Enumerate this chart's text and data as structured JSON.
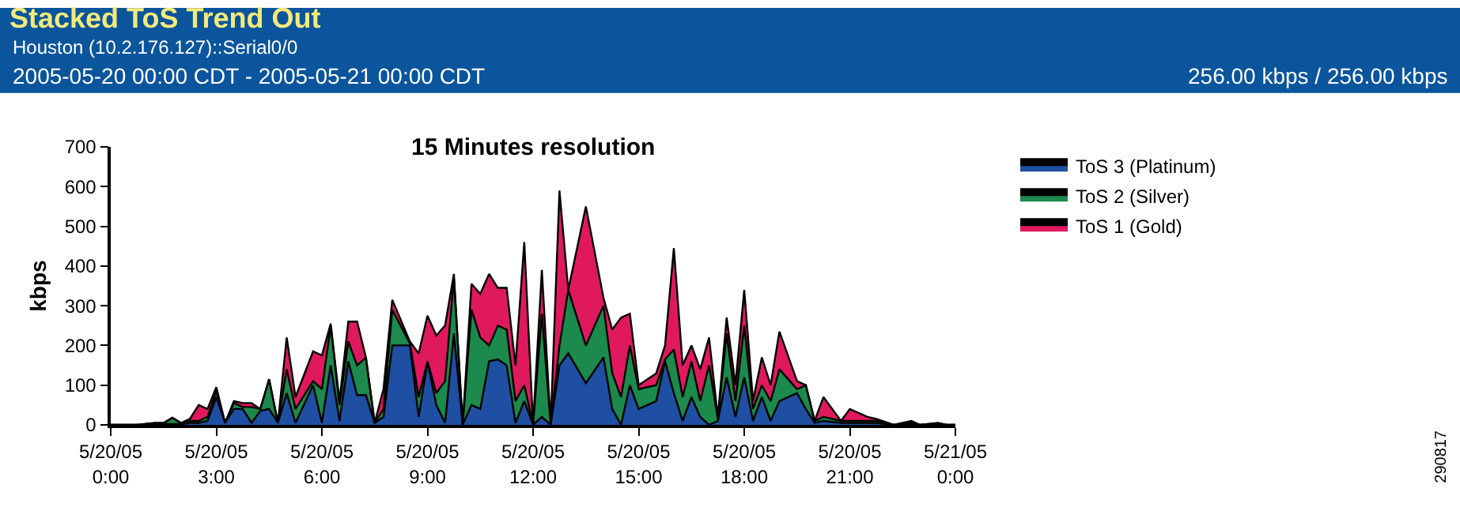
{
  "chart_data": {
    "type": "area",
    "stacked": true,
    "title": "Stacked ToS Trend Out",
    "subtitle": "Houston (10.2.176.127)::Serial0/0",
    "ylabel": "kbps",
    "annotations": [
      "2005-05-20 00:00 CDT - 2005-05-21 00:00 CDT",
      "256.00 kbps / 256.00 kbps",
      "15 Minutes resolution",
      "290817"
    ],
    "x": [
      "2005-05-20T00:00",
      "2005-05-20T00:45",
      "2005-05-20T01:15",
      "2005-05-20T01:30",
      "2005-05-20T01:45",
      "2005-05-20T02:00",
      "2005-05-20T02:15",
      "2005-05-20T02:30",
      "2005-05-20T02:45",
      "2005-05-20T03:00",
      "2005-05-20T03:15",
      "2005-05-20T03:30",
      "2005-05-20T03:45",
      "2005-05-20T04:00",
      "2005-05-20T04:15",
      "2005-05-20T04:30",
      "2005-05-20T04:45",
      "2005-05-20T05:00",
      "2005-05-20T05:15",
      "2005-05-20T05:45",
      "2005-05-20T06:00",
      "2005-05-20T06:15",
      "2005-05-20T06:30",
      "2005-05-20T06:45",
      "2005-05-20T07:00",
      "2005-05-20T07:15",
      "2005-05-20T07:30",
      "2005-05-20T07:45",
      "2005-05-20T08:00",
      "2005-05-20T08:30",
      "2005-05-20T08:45",
      "2005-05-20T09:00",
      "2005-05-20T09:15",
      "2005-05-20T09:30",
      "2005-05-20T09:45",
      "2005-05-20T10:00",
      "2005-05-20T10:15",
      "2005-05-20T10:30",
      "2005-05-20T10:45",
      "2005-05-20T11:00",
      "2005-05-20T11:15",
      "2005-05-20T11:30",
      "2005-05-20T11:45",
      "2005-05-20T12:00",
      "2005-05-20T12:15",
      "2005-05-20T12:30",
      "2005-05-20T12:45",
      "2005-05-20T13:00",
      "2005-05-20T13:30",
      "2005-05-20T14:00",
      "2005-05-20T14:15",
      "2005-05-20T14:30",
      "2005-05-20T14:45",
      "2005-05-20T15:00",
      "2005-05-20T15:30",
      "2005-05-20T15:45",
      "2005-05-20T16:00",
      "2005-05-20T16:15",
      "2005-05-20T16:30",
      "2005-05-20T16:45",
      "2005-05-20T17:00",
      "2005-05-20T17:15",
      "2005-05-20T17:30",
      "2005-05-20T17:45",
      "2005-05-20T18:00",
      "2005-05-20T18:15",
      "2005-05-20T18:30",
      "2005-05-20T18:45",
      "2005-05-20T19:00",
      "2005-05-20T19:30",
      "2005-05-20T19:45",
      "2005-05-20T20:00",
      "2005-05-20T20:15",
      "2005-05-20T20:45",
      "2005-05-20T21:00",
      "2005-05-20T21:30",
      "2005-05-20T21:45",
      "2005-05-20T22:15",
      "2005-05-20T22:45",
      "2005-05-20T23:00",
      "2005-05-20T23:30",
      "2005-05-20T23:45",
      "2005-05-21T00:00"
    ],
    "series": [
      {
        "name": "ToS 3 (Platinum)",
        "color": "#1f4fa3",
        "values": [
          0,
          0,
          3,
          2,
          2,
          2,
          5,
          5,
          10,
          70,
          5,
          40,
          40,
          5,
          35,
          40,
          5,
          80,
          5,
          100,
          5,
          150,
          10,
          160,
          75,
          75,
          5,
          20,
          200,
          200,
          20,
          160,
          50,
          5,
          230,
          0,
          50,
          40,
          160,
          165,
          150,
          5,
          60,
          0,
          20,
          0,
          150,
          180,
          105,
          170,
          40,
          0,
          100,
          40,
          60,
          160,
          80,
          10,
          70,
          20,
          0,
          10,
          120,
          20,
          120,
          10,
          70,
          10,
          60,
          80,
          40,
          5,
          10,
          5,
          5,
          5,
          5,
          0,
          0,
          0,
          2,
          0,
          0
        ]
      },
      {
        "name": "ToS 2 (Silver)",
        "color": "#1b8a4c",
        "values": [
          0,
          0,
          1,
          2,
          16,
          2,
          5,
          5,
          10,
          15,
          0,
          15,
          5,
          40,
          5,
          75,
          0,
          60,
          35,
          10,
          85,
          100,
          40,
          50,
          75,
          95,
          0,
          20,
          90,
          5,
          50,
          0,
          30,
          105,
          140,
          0,
          240,
          180,
          40,
          85,
          90,
          55,
          40,
          0,
          260,
          0,
          50,
          160,
          95,
          130,
          90,
          70,
          100,
          50,
          40,
          5,
          110,
          60,
          90,
          40,
          150,
          5,
          110,
          40,
          130,
          30,
          30,
          50,
          80,
          10,
          60,
          5,
          10,
          5,
          5,
          5,
          5,
          0,
          5,
          0,
          2,
          0,
          0
        ]
      },
      {
        "name": "ToS 1 (Gold)",
        "color": "#e0195f",
        "values": [
          0,
          0,
          1,
          1,
          0,
          1,
          5,
          40,
          20,
          10,
          0,
          5,
          10,
          10,
          0,
          0,
          0,
          80,
          30,
          75,
          85,
          5,
          10,
          50,
          110,
          0,
          0,
          50,
          25,
          5,
          110,
          115,
          145,
          140,
          10,
          0,
          65,
          110,
          180,
          95,
          105,
          90,
          360,
          0,
          110,
          0,
          390,
          0,
          350,
          20,
          110,
          200,
          80,
          10,
          30,
          35,
          255,
          80,
          40,
          80,
          70,
          5,
          40,
          40,
          90,
          20,
          70,
          40,
          95,
          20,
          0,
          0,
          50,
          0,
          30,
          10,
          5,
          0,
          5,
          0,
          1,
          0,
          0
        ]
      }
    ],
    "xlim": [
      "2005-05-20T00:00",
      "2005-05-21T00:00"
    ],
    "xticks": [
      {
        "value": "2005-05-20T00:00",
        "label": "5/20/05\n0:00"
      },
      {
        "value": "2005-05-20T03:00",
        "label": "5/20/05\n3:00"
      },
      {
        "value": "2005-05-20T06:00",
        "label": "5/20/05\n6:00"
      },
      {
        "value": "2005-05-20T09:00",
        "label": "5/20/05\n9:00"
      },
      {
        "value": "2005-05-20T12:00",
        "label": "5/20/05\n12:00"
      },
      {
        "value": "2005-05-20T15:00",
        "label": "5/20/05\n15:00"
      },
      {
        "value": "2005-05-20T18:00",
        "label": "5/20/05\n18:00"
      },
      {
        "value": "2005-05-20T21:00",
        "label": "5/20/05\n21:00"
      },
      {
        "value": "2005-05-21T00:00",
        "label": "5/21/05\n0:00"
      }
    ],
    "ylim": [
      0,
      700
    ],
    "yticks": [
      0,
      100,
      200,
      300,
      400,
      500,
      600,
      700
    ],
    "legend": "top right"
  }
}
